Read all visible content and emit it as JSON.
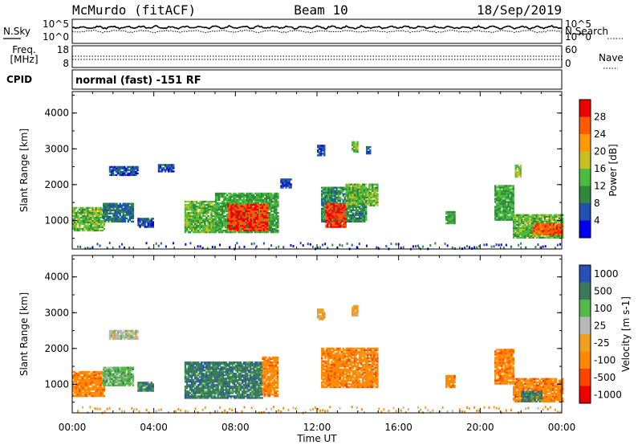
{
  "header": {
    "station": "McMurdo (fitACF)",
    "beam": "Beam 10",
    "date": "18/Sep/2019"
  },
  "noise_panel": {
    "left_label": "N.Sky",
    "right_label": "N.Search",
    "left_ticks": [
      "10^5",
      "10^0"
    ],
    "right_ticks": [
      "10^5",
      "10^0"
    ]
  },
  "freq_panel": {
    "left_label_line1": "Freq.",
    "left_label_line2": "[MHz]",
    "left_ticks": [
      "18",
      "8"
    ],
    "right_label": "Nave",
    "right_ticks": [
      "60",
      "0"
    ]
  },
  "cpid": {
    "label": "CPID",
    "mode": "normal (fast) -151 RF"
  },
  "x_axis": {
    "label": "Time UT",
    "ticks": [
      "00:00",
      "04:00",
      "08:00",
      "12:00",
      "16:00",
      "20:00",
      "00:00"
    ]
  },
  "colors": {
    "power": [
      "#0000ee",
      "#2050b0",
      "#2e8a3a",
      "#4cbb3e",
      "#c8c020",
      "#ff9a00",
      "#ff5a00",
      "#ee0000"
    ],
    "velocity": [
      "#2850b8",
      "#3a7a5a",
      "#55b84a",
      "#b8b8b8",
      "#f0a020",
      "#ff8800",
      "#ff4400",
      "#ee0000"
    ]
  },
  "chart_data": [
    {
      "type": "heatmap",
      "name": "power",
      "xlabel": "Time UT",
      "ylabel": "Slant Range [km]",
      "xlim": [
        0,
        24
      ],
      "ylim": [
        200,
        4600
      ],
      "yticks": [
        "1000",
        "2000",
        "3000",
        "4000"
      ],
      "colorbar_label": "Power [dB]",
      "colorbar_ticks": [
        "4",
        "8",
        "12",
        "16",
        "20",
        "24",
        "28"
      ],
      "patches": [
        {
          "t0": 0.0,
          "t1": 1.6,
          "r0": 700,
          "r1": 1350,
          "v": 14
        },
        {
          "t0": 1.5,
          "t1": 3.0,
          "r0": 950,
          "r1": 1450,
          "v": 8
        },
        {
          "t0": 3.2,
          "t1": 4.0,
          "r0": 800,
          "r1": 1050,
          "v": 5
        },
        {
          "t0": 1.8,
          "t1": 3.2,
          "r0": 2250,
          "r1": 2500,
          "v": 6
        },
        {
          "t0": 4.2,
          "t1": 5.0,
          "r0": 2350,
          "r1": 2550,
          "v": 6
        },
        {
          "t0": 5.5,
          "t1": 7.0,
          "r0": 650,
          "r1": 1550,
          "v": 14
        },
        {
          "t0": 7.0,
          "t1": 10.1,
          "r0": 650,
          "r1": 1750,
          "v": 12
        },
        {
          "t0": 7.6,
          "t1": 9.6,
          "r0": 700,
          "r1": 1450,
          "v": 28
        },
        {
          "t0": 10.2,
          "t1": 10.7,
          "r0": 1900,
          "r1": 2150,
          "v": 5
        },
        {
          "t0": 12.2,
          "t1": 14.4,
          "r0": 950,
          "r1": 1900,
          "v": 10
        },
        {
          "t0": 12.4,
          "t1": 13.4,
          "r0": 800,
          "r1": 1450,
          "v": 28
        },
        {
          "t0": 13.4,
          "t1": 15.0,
          "r0": 1400,
          "r1": 2000,
          "v": 14
        },
        {
          "t0": 12.0,
          "t1": 12.4,
          "r0": 2800,
          "r1": 3100,
          "v": 6
        },
        {
          "t0": 13.7,
          "t1": 14.0,
          "r0": 2900,
          "r1": 3200,
          "v": 14
        },
        {
          "t0": 14.4,
          "t1": 14.6,
          "r0": 2850,
          "r1": 3050,
          "v": 6
        },
        {
          "t0": 18.3,
          "t1": 18.7,
          "r0": 900,
          "r1": 1250,
          "v": 12
        },
        {
          "t0": 20.7,
          "t1": 21.6,
          "r0": 1000,
          "r1": 1950,
          "v": 12
        },
        {
          "t0": 21.6,
          "t1": 24.0,
          "r0": 500,
          "r1": 1150,
          "v": 14
        },
        {
          "t0": 22.6,
          "t1": 24.0,
          "r0": 600,
          "r1": 900,
          "v": 26
        },
        {
          "t0": 21.7,
          "t1": 22.0,
          "r0": 2200,
          "r1": 2550,
          "v": 16
        }
      ]
    },
    {
      "type": "heatmap",
      "name": "velocity",
      "xlabel": "Time UT",
      "ylabel": "Slant Range [km]",
      "xlim": [
        0,
        24
      ],
      "ylim": [
        200,
        4600
      ],
      "yticks": [
        "1000",
        "2000",
        "3000",
        "4000"
      ],
      "colorbar_label": "Velocity [m s-1]",
      "colorbar_ticks": [
        "1000",
        "500",
        "100",
        "25",
        "-25",
        "-100",
        "-500",
        "-1000"
      ],
      "patches": [
        {
          "t0": 0.0,
          "t1": 1.6,
          "r0": 650,
          "r1": 1350,
          "v": 5
        },
        {
          "t0": 1.5,
          "t1": 3.0,
          "r0": 950,
          "r1": 1450,
          "v": 2
        },
        {
          "t0": 3.2,
          "t1": 4.0,
          "r0": 800,
          "r1": 1050,
          "v": 1
        },
        {
          "t0": 1.8,
          "t1": 3.2,
          "r0": 2250,
          "r1": 2500,
          "v": 3
        },
        {
          "t0": 5.5,
          "t1": 9.3,
          "r0": 600,
          "r1": 1600,
          "v": 1
        },
        {
          "t0": 9.3,
          "t1": 10.1,
          "r0": 650,
          "r1": 1750,
          "v": 5
        },
        {
          "t0": 12.2,
          "t1": 15.0,
          "r0": 900,
          "r1": 2000,
          "v": 5
        },
        {
          "t0": 12.0,
          "t1": 12.4,
          "r0": 2800,
          "r1": 3100,
          "v": 4
        },
        {
          "t0": 13.7,
          "t1": 14.0,
          "r0": 2900,
          "r1": 3200,
          "v": 4
        },
        {
          "t0": 18.3,
          "t1": 18.7,
          "r0": 900,
          "r1": 1250,
          "v": 5
        },
        {
          "t0": 20.7,
          "t1": 21.6,
          "r0": 1000,
          "r1": 1950,
          "v": 5
        },
        {
          "t0": 21.6,
          "t1": 24.0,
          "r0": 500,
          "r1": 1150,
          "v": 5
        },
        {
          "t0": 22.0,
          "t1": 23.0,
          "r0": 500,
          "r1": 800,
          "v": 1
        }
      ]
    }
  ]
}
